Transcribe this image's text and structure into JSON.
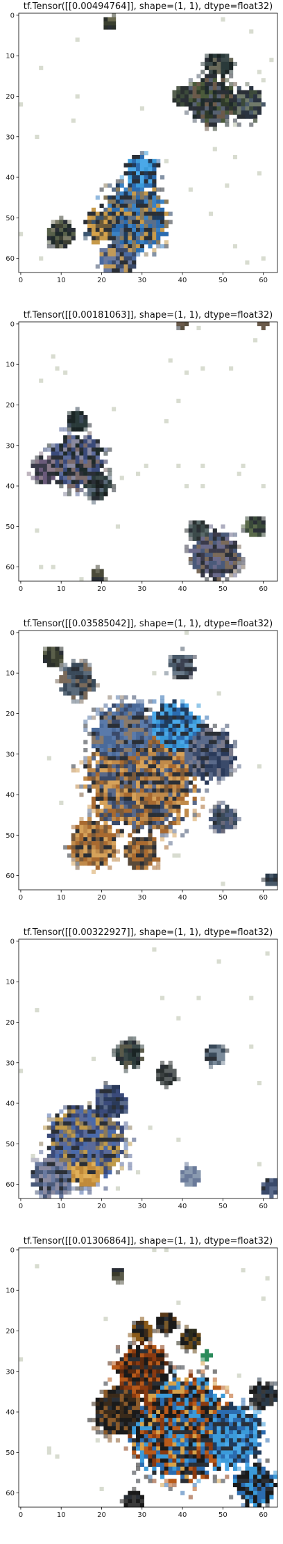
{
  "chart_data": [
    {
      "type": "heatmap",
      "title": "tf.Tensor([[0.00494764]], shape=(1, 1), dtype=float32)",
      "xlim": [
        0,
        63
      ],
      "ylim": [
        63,
        0
      ],
      "xticks": [
        0,
        10,
        20,
        30,
        40,
        50,
        60
      ],
      "yticks": [
        0,
        10,
        20,
        30,
        40,
        50,
        60
      ],
      "xtick_labels": [
        "0",
        "10",
        "20",
        "30",
        "40",
        "50",
        "60"
      ],
      "ytick_labels": [
        "0",
        "10",
        "20",
        "30",
        "40",
        "50",
        "60"
      ],
      "seed": 11,
      "blobs": [
        {
          "cx": 28,
          "cy": 50,
          "r": 10,
          "palette": [
            "#2b6cb0",
            "#3b82c4",
            "#1f3b5c",
            "#8a7a5a",
            "#c79a4a",
            "#5a6f8a"
          ]
        },
        {
          "cx": 20,
          "cy": 52,
          "r": 5,
          "palette": [
            "#c79a4a",
            "#d6a24a",
            "#3b5570",
            "#6b5a3a"
          ]
        },
        {
          "cx": 30,
          "cy": 39,
          "r": 5,
          "palette": [
            "#3b9ad9",
            "#4aa8e8",
            "#2b6cb0",
            "#1f3b5c"
          ]
        },
        {
          "cx": 10,
          "cy": 54,
          "r": 4,
          "palette": [
            "#3c3f33",
            "#57604a",
            "#1f2a2a",
            "#7a7a66"
          ]
        },
        {
          "cx": 47,
          "cy": 21,
          "r": 7,
          "palette": [
            "#2f3a2a",
            "#4a5a3a",
            "#1e2a2a",
            "#6b5a4a",
            "#566070"
          ]
        },
        {
          "cx": 56,
          "cy": 22,
          "r": 5,
          "palette": [
            "#3c4a3a",
            "#2a3340",
            "#707a6a",
            "#4a5a6a"
          ]
        },
        {
          "cx": 49,
          "cy": 12,
          "r": 4,
          "palette": [
            "#2a3a3a",
            "#3c4a4a",
            "#1a2424",
            "#6a6a5a"
          ]
        },
        {
          "cx": 40,
          "cy": 20,
          "r": 3,
          "palette": [
            "#3c4a3a",
            "#566050",
            "#2a3030"
          ]
        },
        {
          "cx": 24,
          "cy": 60,
          "r": 5,
          "palette": [
            "#4a6aa0",
            "#6a7aa0",
            "#3a4a6a",
            "#c09a5a"
          ]
        },
        {
          "cx": 22,
          "cy": 2,
          "r": 2,
          "palette": [
            "#3a3f30",
            "#6a6a50",
            "#2a2f2a"
          ]
        }
      ]
    },
    {
      "type": "heatmap",
      "title": "tf.Tensor([[0.00181063]], shape=(1, 1), dtype=float32)",
      "xlim": [
        0,
        63
      ],
      "ylim": [
        63,
        0
      ],
      "xticks": [
        0,
        10,
        20,
        30,
        40,
        50,
        60
      ],
      "yticks": [
        0,
        10,
        20,
        30,
        40,
        50,
        60
      ],
      "xtick_labels": [
        "0",
        "10",
        "20",
        "30",
        "40",
        "50",
        "60"
      ],
      "ytick_labels": [
        "0",
        "10",
        "20",
        "30",
        "40",
        "50",
        "60"
      ],
      "seed": 23,
      "blobs": [
        {
          "cx": 14,
          "cy": 34,
          "r": 8,
          "palette": [
            "#3a4a7a",
            "#5a6a9a",
            "#1e2a2a",
            "#7a6a6a",
            "#8a8aa0"
          ]
        },
        {
          "cx": 19,
          "cy": 40,
          "r": 4,
          "palette": [
            "#2a3a3a",
            "#3c4a4a",
            "#5a6a7a",
            "#1a2020"
          ]
        },
        {
          "cx": 6,
          "cy": 36,
          "r": 4,
          "palette": [
            "#6a5a7a",
            "#3a3a4a",
            "#8a7a8a"
          ]
        },
        {
          "cx": 14,
          "cy": 24,
          "r": 3,
          "palette": [
            "#2a3a3a",
            "#3c4a5a",
            "#1a2424"
          ]
        },
        {
          "cx": 48,
          "cy": 57,
          "r": 7,
          "palette": [
            "#4a5a7a",
            "#6a6a8a",
            "#3a3a4a",
            "#7a6a5a"
          ]
        },
        {
          "cx": 44,
          "cy": 51,
          "r": 3,
          "palette": [
            "#2a3030",
            "#3c4a4a",
            "#5a6a6a"
          ]
        },
        {
          "cx": 58,
          "cy": 50,
          "r": 3,
          "palette": [
            "#3a4a3a",
            "#5a6a4a",
            "#2a3030"
          ]
        },
        {
          "cx": 60,
          "cy": 0,
          "r": 1.5,
          "palette": [
            "#6a5a4a",
            "#4a4030"
          ]
        },
        {
          "cx": 40,
          "cy": 0,
          "r": 1.5,
          "palette": [
            "#6a5a4a",
            "#5a5040"
          ]
        },
        {
          "cx": 19,
          "cy": 62,
          "r": 2,
          "palette": [
            "#4a4a3a",
            "#6a6a5a"
          ]
        }
      ]
    },
    {
      "type": "heatmap",
      "title": "tf.Tensor([[0.03585042]], shape=(1, 1), dtype=float32)",
      "xlim": [
        0,
        63
      ],
      "ylim": [
        63,
        0
      ],
      "xticks": [
        0,
        10,
        20,
        30,
        40,
        50,
        60
      ],
      "yticks": [
        0,
        10,
        20,
        30,
        40,
        50,
        60
      ],
      "xtick_labels": [
        "0",
        "10",
        "20",
        "30",
        "40",
        "50",
        "60"
      ],
      "ytick_labels": [
        "0",
        "10",
        "20",
        "30",
        "40",
        "50",
        "60"
      ],
      "seed": 37,
      "blobs": [
        {
          "cx": 30,
          "cy": 36,
          "r": 16,
          "palette": [
            "#c08a4a",
            "#a86a30",
            "#5a6a8a",
            "#3a4a6a",
            "#d6a25a",
            "#7a5a3a"
          ]
        },
        {
          "cx": 26,
          "cy": 26,
          "r": 10,
          "palette": [
            "#4a6a9a",
            "#5a7aaa",
            "#3a4a6a",
            "#8a7a6a"
          ]
        },
        {
          "cx": 38,
          "cy": 24,
          "r": 8,
          "palette": [
            "#3a9ad9",
            "#2b6cb0",
            "#4aa8e8",
            "#1f3b5c"
          ]
        },
        {
          "cx": 18,
          "cy": 52,
          "r": 7,
          "palette": [
            "#c08a4a",
            "#a86a30",
            "#d6a25a",
            "#7a5a3a"
          ]
        },
        {
          "cx": 30,
          "cy": 54,
          "r": 5,
          "palette": [
            "#a86a30",
            "#c08a4a",
            "#5a4a3a"
          ]
        },
        {
          "cx": 46,
          "cy": 30,
          "r": 8,
          "palette": [
            "#5a6a8a",
            "#3a4a6a",
            "#7a7a8a",
            "#2a3a5a"
          ]
        },
        {
          "cx": 14,
          "cy": 12,
          "r": 5,
          "palette": [
            "#5a6a7a",
            "#3a4a5a",
            "#7a6a5a"
          ]
        },
        {
          "cx": 8,
          "cy": 6,
          "r": 3,
          "palette": [
            "#3a3f30",
            "#5a5f4a",
            "#2a2f2a"
          ]
        },
        {
          "cx": 40,
          "cy": 8,
          "r": 4,
          "palette": [
            "#4a5a6a",
            "#6a7a8a",
            "#3a4050"
          ]
        },
        {
          "cx": 50,
          "cy": 46,
          "r": 4,
          "palette": [
            "#4a5a7a",
            "#3a4a5a",
            "#6a6a7a"
          ]
        },
        {
          "cx": 62,
          "cy": 61,
          "r": 2,
          "palette": [
            "#2a3a4a",
            "#4a5a6a"
          ]
        }
      ]
    },
    {
      "type": "heatmap",
      "title": "tf.Tensor([[0.00322927]], shape=(1, 1), dtype=float32)",
      "xlim": [
        0,
        63
      ],
      "ylim": [
        63,
        0
      ],
      "xticks": [
        0,
        10,
        20,
        30,
        40,
        50,
        60
      ],
      "yticks": [
        0,
        10,
        20,
        30,
        40,
        50,
        60
      ],
      "xtick_labels": [
        "0",
        "10",
        "20",
        "30",
        "40",
        "50",
        "60"
      ],
      "ytick_labels": [
        "0",
        "10",
        "20",
        "30",
        "40",
        "50",
        "60"
      ],
      "seed": 51,
      "blobs": [
        {
          "cx": 16,
          "cy": 50,
          "r": 11,
          "palette": [
            "#5a6a9a",
            "#3a4a7a",
            "#c09a4a",
            "#8a7a5a",
            "#4a6aaa"
          ]
        },
        {
          "cx": 16,
          "cy": 56,
          "r": 5,
          "palette": [
            "#d6a24a",
            "#c08a3a",
            "#e0b05a"
          ]
        },
        {
          "cx": 8,
          "cy": 58,
          "r": 6,
          "palette": [
            "#6a7aa0",
            "#4a5a7a",
            "#8a8aa0"
          ]
        },
        {
          "cx": 22,
          "cy": 40,
          "r": 5,
          "palette": [
            "#3a4a7a",
            "#2a3a5a",
            "#5a6a8a"
          ]
        },
        {
          "cx": 27,
          "cy": 28,
          "r": 4,
          "palette": [
            "#2a3a3a",
            "#3c4a4a",
            "#1a2424",
            "#5a5a4a"
          ]
        },
        {
          "cx": 36,
          "cy": 33,
          "r": 3,
          "palette": [
            "#3a4040",
            "#5a6060",
            "#2a3030"
          ]
        },
        {
          "cx": 48,
          "cy": 28,
          "r": 3,
          "palette": [
            "#5a6a7a",
            "#7a8a9a",
            "#3a4a5a"
          ]
        },
        {
          "cx": 62,
          "cy": 61,
          "r": 2.5,
          "palette": [
            "#3a4a6a",
            "#5a6a8a"
          ]
        },
        {
          "cx": 42,
          "cy": 58,
          "r": 3,
          "palette": [
            "#6a7a9a",
            "#8a9ab0"
          ]
        }
      ]
    },
    {
      "type": "heatmap",
      "title": "tf.Tensor([[0.01306864]], shape=(1, 1), dtype=float32)",
      "xlim": [
        0,
        63
      ],
      "ylim": [
        63,
        0
      ],
      "xticks": [
        0,
        10,
        20,
        30,
        40,
        50,
        60
      ],
      "yticks": [
        0,
        10,
        20,
        30,
        40,
        50,
        60
      ],
      "xtick_labels": [
        "0",
        "10",
        "20",
        "30",
        "40",
        "50",
        "60"
      ],
      "ytick_labels": [
        "0",
        "10",
        "20",
        "30",
        "40",
        "50",
        "60"
      ],
      "seed": 67,
      "blobs": [
        {
          "cx": 40,
          "cy": 44,
          "r": 15,
          "palette": [
            "#b85a1a",
            "#2b6cb0",
            "#1a1a1a",
            "#d6a24a",
            "#3b9ad9",
            "#8a3a10"
          ]
        },
        {
          "cx": 52,
          "cy": 46,
          "r": 9,
          "palette": [
            "#3b9ad9",
            "#2b6cb0",
            "#1f3b5c",
            "#4aa8e8"
          ]
        },
        {
          "cx": 30,
          "cy": 30,
          "r": 8,
          "palette": [
            "#8a3a10",
            "#b85a1a",
            "#1a1a1a",
            "#5a2a10"
          ]
        },
        {
          "cx": 24,
          "cy": 40,
          "r": 7,
          "palette": [
            "#1a1a1a",
            "#3a2a1a",
            "#8a5a2a"
          ]
        },
        {
          "cx": 60,
          "cy": 36,
          "r": 4,
          "palette": [
            "#1a1a1a",
            "#2a3a4a",
            "#3a3a3a"
          ]
        },
        {
          "cx": 58,
          "cy": 58,
          "r": 6,
          "palette": [
            "#2b6cb0",
            "#1a1a1a",
            "#3b9ad9"
          ]
        },
        {
          "cx": 36,
          "cy": 18,
          "r": 3,
          "palette": [
            "#1a1a1a",
            "#5a3a1a",
            "#7a5a2a"
          ]
        },
        {
          "cx": 42,
          "cy": 22,
          "r": 3,
          "palette": [
            "#2a2a1a",
            "#6a4a1a",
            "#1a1a1a"
          ]
        },
        {
          "cx": 30,
          "cy": 20,
          "r": 3,
          "palette": [
            "#3a2a1a",
            "#8a5a1a",
            "#1a1a1a"
          ]
        },
        {
          "cx": 28,
          "cy": 62,
          "r": 3,
          "palette": [
            "#1a1a1a",
            "#3a3a3a"
          ]
        },
        {
          "cx": 24,
          "cy": 6,
          "r": 2,
          "palette": [
            "#3a3a2a",
            "#5a5a4a"
          ]
        },
        {
          "cx": 46,
          "cy": 26,
          "r": 1.5,
          "palette": [
            "#2a8a5a"
          ]
        }
      ]
    }
  ]
}
